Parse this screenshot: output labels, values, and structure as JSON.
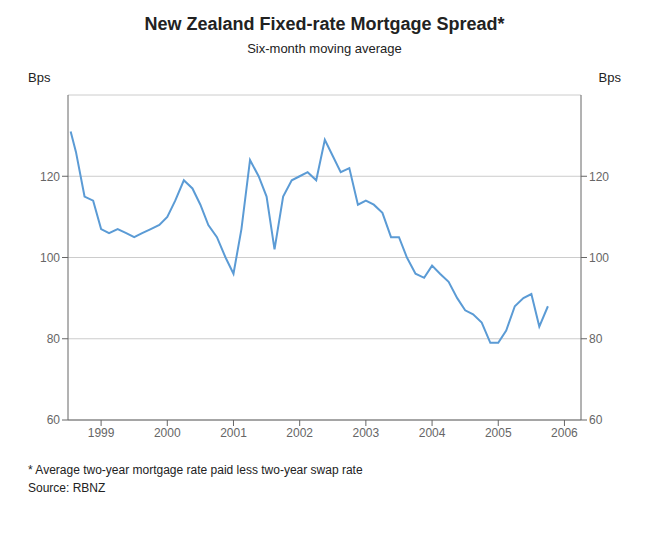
{
  "chart_data": {
    "type": "line",
    "title": "New Zealand Fixed-rate Mortgage Spread*",
    "subtitle": "Six-month moving average",
    "ylabel": "Bps",
    "y2label": "Bps",
    "annotations": [
      "* Average two-year mortgage rate paid less two-year swap rate",
      "Source: RBNZ"
    ],
    "color": "#5B9BD5",
    "grid": true,
    "xlim": [
      1998.5,
      2006.25
    ],
    "xticks": [
      1999,
      2000,
      2001,
      2002,
      2003,
      2004,
      2005,
      2006
    ],
    "ylim": [
      60,
      140
    ],
    "yticks": [
      60,
      80,
      100,
      120
    ],
    "y2lim": [
      60,
      140
    ],
    "y2ticks": [
      60,
      80,
      100,
      120
    ],
    "x": [
      1998.54,
      1998.62,
      1998.75,
      1998.88,
      1999.0,
      1999.12,
      1999.25,
      1999.38,
      1999.5,
      1999.62,
      1999.75,
      1999.88,
      2000.0,
      2000.12,
      2000.25,
      2000.38,
      2000.5,
      2000.62,
      2000.75,
      2000.88,
      2001.0,
      2001.12,
      2001.25,
      2001.38,
      2001.5,
      2001.62,
      2001.75,
      2001.88,
      2002.0,
      2002.12,
      2002.25,
      2002.38,
      2002.5,
      2002.62,
      2002.75,
      2002.88,
      2003.0,
      2003.12,
      2003.25,
      2003.38,
      2003.5,
      2003.62,
      2003.75,
      2003.88,
      2004.0,
      2004.12,
      2004.25,
      2004.38,
      2004.5,
      2004.62,
      2004.75,
      2004.88,
      2005.0,
      2005.12,
      2005.25,
      2005.38,
      2005.5,
      2005.62,
      2005.75
    ],
    "values": [
      131,
      126,
      115,
      114,
      107,
      106,
      107,
      106,
      105,
      106,
      107,
      108,
      110,
      114,
      119,
      117,
      113,
      108,
      105,
      100,
      96,
      107,
      124,
      120,
      115,
      102,
      115,
      119,
      120,
      121,
      119,
      129,
      125,
      121,
      122,
      113,
      114,
      113,
      111,
      105,
      105,
      100,
      96,
      95,
      98,
      96,
      94,
      90,
      87,
      86,
      84,
      79,
      79,
      82,
      88,
      90,
      91,
      83,
      88
    ]
  }
}
